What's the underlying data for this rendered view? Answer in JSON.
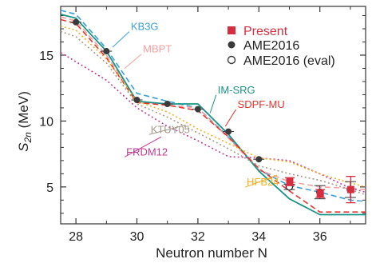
{
  "chart_data": {
    "type": "line",
    "xlabel": "Neutron number N",
    "ylabel_main": "S",
    "ylabel_sub": "2n",
    "ylabel_unit": " (MeV)",
    "xlim": [
      27.5,
      37.5
    ],
    "ylim": [
      2.2,
      18.7
    ],
    "xticks": [
      28,
      30,
      32,
      34,
      36
    ],
    "yticks": [
      5,
      10,
      15
    ],
    "grid": false,
    "legend_position": "top-right",
    "legend": [
      {
        "label": "Present",
        "marker": "square",
        "color": "#d62d3f"
      },
      {
        "label": "AME2016",
        "marker": "filled-circle",
        "color": "#3a3a3a"
      },
      {
        "label": "AME2016 (eval)",
        "marker": "open-circle",
        "color": "#3a3a3a"
      }
    ],
    "series": [
      {
        "name": "KB3G",
        "style": "dashed",
        "color": "#3b9fd6",
        "x": [
          27.5,
          28,
          29,
          30,
          31,
          32,
          33,
          34,
          35,
          36,
          37,
          37.5
        ],
        "y": [
          18.4,
          18.1,
          15.5,
          12.1,
          11.5,
          11.0,
          8.8,
          6.3,
          5.1,
          4.6,
          4.0,
          3.9
        ]
      },
      {
        "name": "MBPT",
        "style": "dashed",
        "color": "#f2a0a0",
        "x": [
          27.5,
          28,
          29,
          30,
          31,
          32,
          33,
          34,
          35,
          36,
          37,
          37.5
        ],
        "y": [
          17.9,
          17.6,
          15.0,
          11.5,
          11.2,
          11.0,
          8.7,
          6.3,
          5.4,
          5.0,
          4.9,
          4.8
        ]
      },
      {
        "name": "IM-SRG",
        "style": "solid",
        "color": "#1a9486",
        "x": [
          27.5,
          28,
          29,
          30,
          31,
          32,
          33,
          34,
          35,
          36,
          37,
          37.5
        ],
        "y": [
          18.1,
          17.8,
          15.3,
          11.5,
          11.3,
          11.3,
          9.0,
          6.2,
          4.1,
          2.9,
          2.9,
          2.9
        ]
      },
      {
        "name": "SDPF-MU",
        "style": "dashed",
        "color": "#e2362f",
        "x": [
          27.5,
          28,
          29,
          30,
          31,
          32,
          33,
          34,
          35,
          36,
          37,
          37.5
        ],
        "y": [
          17.7,
          17.4,
          14.8,
          11.4,
          11.2,
          10.8,
          8.8,
          6.4,
          4.7,
          3.1,
          3.1,
          3.1
        ]
      },
      {
        "name": "KTUY05",
        "style": "dotted",
        "color": "#a39a8a",
        "x": [
          27.5,
          28,
          29,
          30,
          31,
          32,
          33,
          34,
          35,
          36,
          37,
          37.5
        ],
        "y": [
          16.8,
          16.4,
          14.4,
          11.3,
          10.3,
          9.1,
          7.9,
          6.6,
          6.0,
          5.5,
          4.8,
          4.4
        ]
      },
      {
        "name": "FRDM12",
        "style": "dotted",
        "color": "#c43a90",
        "x": [
          27.5,
          28,
          29,
          30,
          31,
          32,
          33,
          34,
          35,
          36,
          37,
          37.5
        ],
        "y": [
          15.2,
          14.5,
          13.1,
          11.0,
          9.6,
          8.5,
          7.3,
          7.2,
          7.0,
          6.0,
          4.9,
          4.6
        ]
      },
      {
        "name": "HFB24",
        "style": "dotted",
        "color": "#f0b020",
        "x": [
          27.5,
          28,
          29,
          30,
          31,
          32,
          33,
          34,
          35,
          36,
          37,
          37.5
        ],
        "y": [
          17.2,
          16.9,
          14.7,
          11.5,
          10.7,
          9.4,
          8.3,
          7.2,
          6.9,
          6.0,
          5.3,
          5.0
        ]
      }
    ],
    "series_labels": [
      {
        "name": "KB3G",
        "color": "#3b9fd6",
        "at": [
          29.8,
          16.9
        ],
        "leader_to": [
          29.2,
          15.6
        ]
      },
      {
        "name": "MBPT",
        "color": "#f2a0a0",
        "at": [
          30.2,
          15.2
        ],
        "leader_to": [
          29.6,
          14.0
        ]
      },
      {
        "name": "IM-SRG",
        "color": "#1a9486",
        "at": [
          32.65,
          12.1
        ],
        "leader_to": [
          32.4,
          10.6
        ]
      },
      {
        "name": "SDPF-MU",
        "color": "#e2362f",
        "at": [
          33.3,
          11.0
        ],
        "leader_to": [
          32.9,
          9.6
        ]
      },
      {
        "name": "KTUY05",
        "color": "#a39a8a",
        "at": [
          30.45,
          9.1
        ],
        "leader_to": [
          31.6,
          9.7
        ]
      },
      {
        "name": "FRDM12",
        "color": "#c43a90",
        "at": [
          29.65,
          7.4
        ],
        "leader_to": [
          30.8,
          8.8
        ]
      },
      {
        "name": "HFB24",
        "color": "#f0b020",
        "at": [
          33.6,
          5.1
        ],
        "leader_to": [
          34.6,
          5.9
        ]
      }
    ],
    "ame2016": {
      "x": [
        28,
        29,
        30,
        31,
        32,
        33,
        34
      ],
      "y": [
        17.5,
        15.3,
        11.6,
        11.3,
        10.9,
        9.2,
        7.1
      ]
    },
    "ame2016_eval": {
      "x": [
        35,
        36,
        37
      ],
      "y": [
        5.0,
        4.6,
        4.8
      ],
      "err": [
        0.2,
        0.5,
        0.6
      ]
    },
    "present": {
      "x": [
        35,
        36,
        37
      ],
      "y": [
        5.4,
        4.5,
        4.8
      ],
      "err": [
        0.3,
        0.3,
        1.0
      ]
    }
  }
}
